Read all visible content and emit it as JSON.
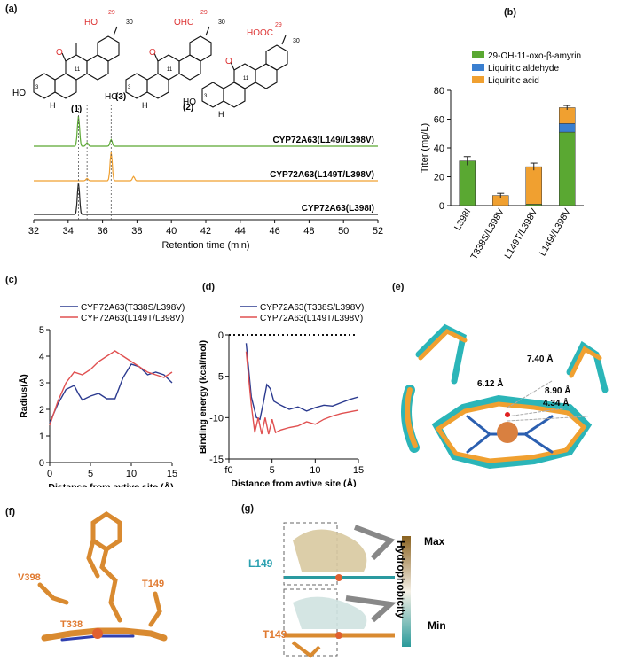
{
  "panel_labels": {
    "a": "(a)",
    "b": "(b)",
    "c": "(c)",
    "d": "(d)",
    "e": "(e)",
    "f": "(f)",
    "g": "(g)"
  },
  "structures": {
    "s1_group": "HO",
    "s1_num29": "29",
    "s1_num30": "30",
    "s1_num11": "11",
    "s1_num3": "3",
    "s1_tag": "(1)",
    "s3_group": "OHC",
    "s3_num29": "29",
    "s3_num30": "30",
    "s3_num11": "11",
    "s3_num3": "3",
    "s3_tag": "(3)",
    "s2_group": "HOOC",
    "s2_num29": "29",
    "s2_num30": "30",
    "s2_num11": "11",
    "s2_num3": "3",
    "s2_tag": "(2)",
    "oxygen": "O",
    "ho": "HO",
    "h": "H"
  },
  "colors": {
    "green": "#5aa832",
    "orange": "#f0a030",
    "blue": "#3a7fd0",
    "navy": "#2b3a8f",
    "red": "#e05050",
    "black": "#222222"
  },
  "chart_data": [
    {
      "type": "line",
      "xlabel": "Retention time (min)",
      "x_ticks": [
        32,
        34,
        36,
        38,
        40,
        42,
        44,
        46,
        48,
        50,
        52
      ],
      "xlim": [
        32,
        52
      ],
      "series": [
        {
          "name": "CYP72A63(L149I/L398V)",
          "color": "#5aa832",
          "peaks": [
            [
              34.6,
              1.0
            ],
            [
              35.1,
              0.12
            ],
            [
              36.5,
              0.22
            ]
          ]
        },
        {
          "name": "CYP72A63(L149T/L398V)",
          "color": "#f0a030",
          "peaks": [
            [
              35.1,
              0.08
            ],
            [
              36.5,
              1.0
            ],
            [
              37.8,
              0.15
            ]
          ]
        },
        {
          "name": "CYP72A63(L398I)",
          "color": "#222222",
          "peaks": [
            [
              34.6,
              1.0
            ]
          ]
        }
      ],
      "markers": [
        34.6,
        35.1,
        36.5
      ]
    },
    {
      "type": "bar",
      "ylabel": "Titer (mg/L)",
      "ylim": [
        0,
        80
      ],
      "y_ticks": [
        0,
        20,
        40,
        60,
        80
      ],
      "categories": [
        "L398I",
        "T338S/L398V",
        "L149T/L398V",
        "L149I/L398V"
      ],
      "legend": [
        "29-OH-11-oxo-β-amyrin",
        "Liquiritic aldehyde",
        "Liquiritic acid"
      ],
      "series": [
        {
          "name": "29-OH-11-oxo-β-amyrin",
          "color": "#5aa832",
          "values": [
            31,
            0,
            1,
            51
          ]
        },
        {
          "name": "Liquiritic aldehyde",
          "color": "#3a7fd0",
          "values": [
            0,
            0,
            0,
            6
          ]
        },
        {
          "name": "Liquiritic acid",
          "color": "#f0a030",
          "values": [
            0,
            7,
            26,
            11
          ]
        }
      ],
      "errors": [
        3,
        1.5,
        2.5,
        1.5
      ]
    },
    {
      "type": "line",
      "ylabel": "Radius(Å)",
      "xlabel": "Distance from avtive site (Å)",
      "xlim": [
        0,
        15
      ],
      "ylim": [
        0,
        5
      ],
      "x_ticks": [
        0,
        5,
        10,
        15
      ],
      "y_ticks": [
        0,
        1,
        2,
        3,
        4,
        5
      ],
      "series": [
        {
          "name": "CYP72A63(T338S/L398V)",
          "color": "#2b3a8f",
          "x": [
            0,
            1,
            2,
            3,
            3.5,
            4,
            5,
            6,
            7,
            8,
            9,
            10,
            11,
            12,
            13,
            14,
            15
          ],
          "y": [
            1.5,
            2.2,
            2.75,
            2.9,
            2.6,
            2.35,
            2.5,
            2.6,
            2.4,
            2.4,
            3.2,
            3.7,
            3.6,
            3.3,
            3.4,
            3.3,
            3.0
          ]
        },
        {
          "name": "CYP72A63(L149T/L398V)",
          "color": "#e05050",
          "x": [
            0,
            1,
            2,
            3,
            4,
            5,
            6,
            7,
            8,
            9,
            10,
            11,
            12,
            13,
            14,
            15
          ],
          "y": [
            1.4,
            2.3,
            3.0,
            3.4,
            3.3,
            3.5,
            3.8,
            4.0,
            4.2,
            4.0,
            3.8,
            3.6,
            3.4,
            3.3,
            3.2,
            3.4
          ]
        }
      ]
    },
    {
      "type": "line",
      "ylabel": "Binding energy (kcal/mol)",
      "xlabel": "Distance from avtive site (Å)",
      "xlim": [
        0,
        15
      ],
      "ylim": [
        -15,
        0
      ],
      "x_ticks": [
        0,
        5,
        10,
        15
      ],
      "y_ticks": [
        -15,
        -10,
        -5,
        0
      ],
      "series": [
        {
          "name": "CYP72A63(T338S/L398V)",
          "color": "#2b3a8f",
          "x": [
            2,
            2.6,
            3.2,
            3.6,
            4.0,
            4.4,
            4.8,
            5.2,
            6,
            7,
            8,
            9,
            10,
            11,
            12,
            13,
            14,
            15
          ],
          "y": [
            -1.0,
            -7.5,
            -10.0,
            -10.2,
            -8.2,
            -6.0,
            -6.5,
            -8.0,
            -8.5,
            -9.0,
            -8.7,
            -9.2,
            -8.8,
            -8.5,
            -8.6,
            -8.2,
            -7.8,
            -7.5
          ]
        },
        {
          "name": "CYP72A63(L149T/L398V)",
          "color": "#e05050",
          "x": [
            2,
            2.6,
            3.0,
            3.4,
            3.8,
            4.2,
            4.6,
            5.0,
            5.4,
            6,
            7,
            8,
            9,
            10,
            11,
            12,
            13,
            14,
            15
          ],
          "y": [
            -2.0,
            -8.5,
            -11.8,
            -10.0,
            -12.0,
            -10.0,
            -12.0,
            -10.2,
            -11.8,
            -11.5,
            -11.2,
            -11.0,
            -10.5,
            -10.8,
            -10.2,
            -9.8,
            -9.5,
            -9.3,
            -9.1
          ]
        }
      ]
    }
  ],
  "panel_d_origin": "f0",
  "panel_e": {
    "d1": "7.40 Å",
    "d2": "6.12 Å",
    "d3": "8.90 Å",
    "d4": "4.34 Å"
  },
  "panel_f": {
    "v398": "V398",
    "t149": "T149",
    "t338": "T338"
  },
  "panel_g": {
    "l149": "L149",
    "t149": "T149",
    "colorbar_label": "Hydrophobicity",
    "max": "Max",
    "min": "Min"
  }
}
